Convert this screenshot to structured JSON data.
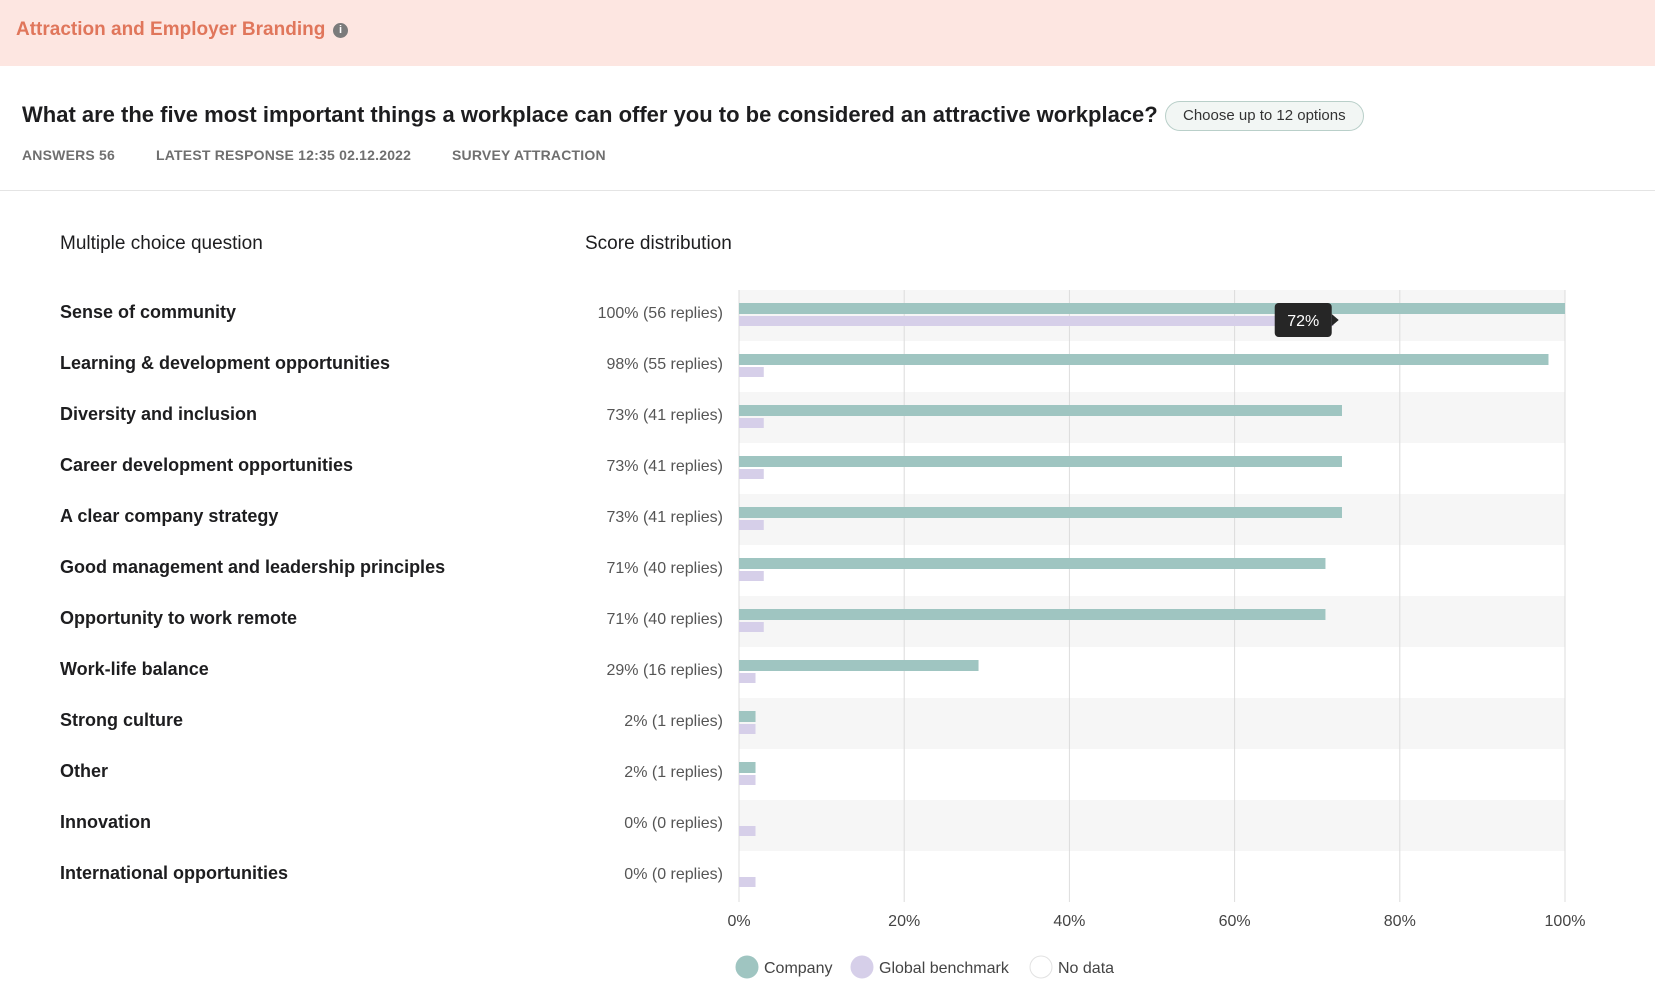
{
  "header": {
    "title": "Attraction and Employer Branding",
    "info_icon": "info-icon"
  },
  "question": {
    "text": "What are the five most important things a workplace can offer you to be considered an attractive workplace?",
    "options_label": "Choose up to 12 options"
  },
  "meta": {
    "answers": "ANSWERS 56",
    "latest_response": "LATEST RESPONSE 12:35 02.12.2022",
    "survey": "SURVEY ATTRACTION"
  },
  "columns": {
    "left": "Multiple choice question",
    "right": "Score distribution"
  },
  "colors": {
    "company": "#9fc5c1",
    "benchmark": "#d6cfe9",
    "no_data": "#ffffff",
    "row_stripe": "#f6f6f6",
    "tooltip_bg": "#262626"
  },
  "chart_data": {
    "type": "bar",
    "orientation": "horizontal",
    "categories": [
      "Sense of community",
      "Learning & development opportunities",
      "Diversity and inclusion",
      "Career development opportunities",
      "A clear company strategy",
      "Good management and leadership principles",
      "Opportunity to work remote",
      "Work-life balance",
      "Strong culture",
      "Other",
      "Innovation",
      "International opportunities"
    ],
    "value_labels": [
      "100% (56 replies)",
      "98% (55 replies)",
      "73% (41 replies)",
      "73% (41 replies)",
      "73% (41 replies)",
      "71% (40 replies)",
      "71% (40 replies)",
      "29% (16 replies)",
      "2% (1 replies)",
      "2% (1 replies)",
      "0% (0 replies)",
      "0% (0 replies)"
    ],
    "series": [
      {
        "name": "Company",
        "values": [
          100,
          98,
          73,
          73,
          73,
          71,
          71,
          29,
          2,
          2,
          0,
          0
        ]
      },
      {
        "name": "Global benchmark",
        "values": [
          72,
          3,
          3,
          3,
          3,
          3,
          3,
          2,
          2,
          2,
          2,
          2
        ]
      }
    ],
    "xlim": [
      0,
      100
    ],
    "x_ticks": [
      "0%",
      "20%",
      "40%",
      "60%",
      "80%",
      "100%"
    ],
    "legend": [
      "Company",
      "Global benchmark",
      "No data"
    ],
    "legend_position": "bottom",
    "grid": true,
    "tooltip": {
      "category_index": 0,
      "series": "Global benchmark",
      "text": "72%"
    }
  }
}
